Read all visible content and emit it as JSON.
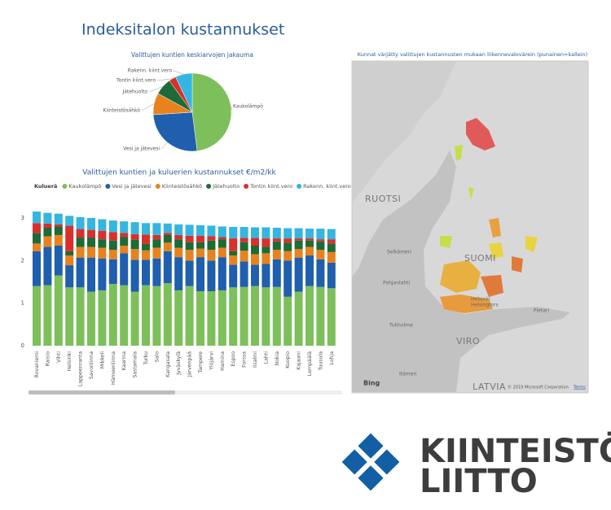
{
  "header": {
    "title": "Indeksitalon kustannukset"
  },
  "chart_data": [
    {
      "type": "pie",
      "title": "Valittujen kuntien keskiarvojen jakauma",
      "categories": [
        "Kaukolämpö",
        "Vesi ja jätevesi",
        "Kiinteistösähkö",
        "Jätehuolto",
        "Tontin kiint.vero",
        "Rakenn. kiint.vero"
      ],
      "values": [
        48,
        26,
        9,
        7,
        3,
        7
      ],
      "colors": [
        "#7dbf5b",
        "#1f5fad",
        "#e8821e",
        "#1d6b36",
        "#d8302d",
        "#35b5e0"
      ]
    },
    {
      "type": "bar",
      "stacked": true,
      "title": "Valittujen kuntien ja kuluerien kustannukset €/m2/kk",
      "legend_title": "Kuluerä",
      "categories": [
        "Rovaniemi",
        "Raisio",
        "Vihti",
        "Helsinki",
        "Lappeenranta",
        "Savonlinna",
        "Mikkeli",
        "Hämeenlinna",
        "Kaarina",
        "Sastamala",
        "Turku",
        "Salo",
        "Kangasala",
        "Jyväskylä",
        "Järvenpää",
        "Tampere",
        "Ylöjärvi",
        "Hamina",
        "Espoo",
        "Forssa",
        "Iisalmi",
        "Lahti",
        "Nokia",
        "Kuopio",
        "Kajaani",
        "Lempäälä",
        "Tuusula",
        "Lohja"
      ],
      "series": [
        {
          "name": "Kaukolämpö",
          "color": "#7dbf5b",
          "values": [
            1.4,
            1.42,
            1.65,
            1.37,
            1.37,
            1.27,
            1.3,
            1.45,
            1.42,
            1.27,
            1.42,
            1.4,
            1.47,
            1.3,
            1.4,
            1.28,
            1.28,
            1.3,
            1.37,
            1.38,
            1.4,
            1.37,
            1.38,
            1.15,
            1.27,
            1.4,
            1.38,
            1.35
          ]
        },
        {
          "name": "Vesi ja jätevesi",
          "color": "#1f5fad",
          "values": [
            0.82,
            0.9,
            0.7,
            0.52,
            0.7,
            0.8,
            0.75,
            0.58,
            0.75,
            0.75,
            0.6,
            0.65,
            0.75,
            0.78,
            0.6,
            0.8,
            0.72,
            0.78,
            0.53,
            0.6,
            0.5,
            0.55,
            0.65,
            0.85,
            0.8,
            0.72,
            0.65,
            0.6
          ]
        },
        {
          "name": "Kiinteistösähkö",
          "color": "#e8821e",
          "values": [
            0.18,
            0.25,
            0.25,
            0.23,
            0.25,
            0.25,
            0.25,
            0.22,
            0.18,
            0.25,
            0.22,
            0.25,
            0.2,
            0.22,
            0.25,
            0.2,
            0.25,
            0.22,
            0.22,
            0.25,
            0.25,
            0.25,
            0.22,
            0.22,
            0.2,
            0.2,
            0.22,
            0.25
          ]
        },
        {
          "name": "Jätehuolto",
          "color": "#1d6b36",
          "values": [
            0.25,
            0.2,
            0.2,
            0.1,
            0.22,
            0.22,
            0.2,
            0.22,
            0.2,
            0.22,
            0.15,
            0.2,
            0.18,
            0.2,
            0.18,
            0.15,
            0.22,
            0.2,
            0.1,
            0.2,
            0.2,
            0.15,
            0.2,
            0.2,
            0.2,
            0.15,
            0.2,
            0.2
          ]
        },
        {
          "name": "Tontin kiint.vero",
          "color": "#d8302d",
          "values": [
            0.23,
            0.1,
            0.05,
            0.6,
            0.2,
            0.18,
            0.2,
            0.2,
            0.1,
            0.13,
            0.22,
            0.1,
            0.05,
            0.1,
            0.15,
            0.15,
            0.1,
            0.05,
            0.3,
            0.1,
            0.18,
            0.2,
            0.07,
            0.1,
            0.05,
            0.05,
            0.05,
            0.1
          ]
        },
        {
          "name": "Rakenn. kiint.vero",
          "color": "#35b5e0",
          "values": [
            0.27,
            0.25,
            0.25,
            0.23,
            0.28,
            0.28,
            0.27,
            0.27,
            0.27,
            0.28,
            0.27,
            0.28,
            0.22,
            0.25,
            0.26,
            0.25,
            0.25,
            0.25,
            0.27,
            0.26,
            0.25,
            0.26,
            0.25,
            0.24,
            0.24,
            0.23,
            0.25,
            0.24
          ]
        }
      ],
      "ylim": [
        0,
        3.2
      ],
      "yticks": [
        0,
        1,
        2,
        3
      ],
      "grid": false
    }
  ],
  "map": {
    "title": "Kunnat värjätty valittujen kustannusten mukaan liikennevalovärein (punainen=kallein)",
    "labels": [
      "RUOTSI",
      "SUOMI",
      "VIRO",
      "LATVIA",
      "Selkämeri",
      "Pohjanlahti",
      "Tukholma",
      "Helsinki",
      "Helsingfors",
      "Pietari",
      "Itämeri"
    ],
    "provider": "Bing",
    "attribution": "© 2019 Microsoft Corporation",
    "terms": "Terms"
  },
  "logo": {
    "line1": "KIINTEISTÖ",
    "line2": "LIITTO"
  }
}
